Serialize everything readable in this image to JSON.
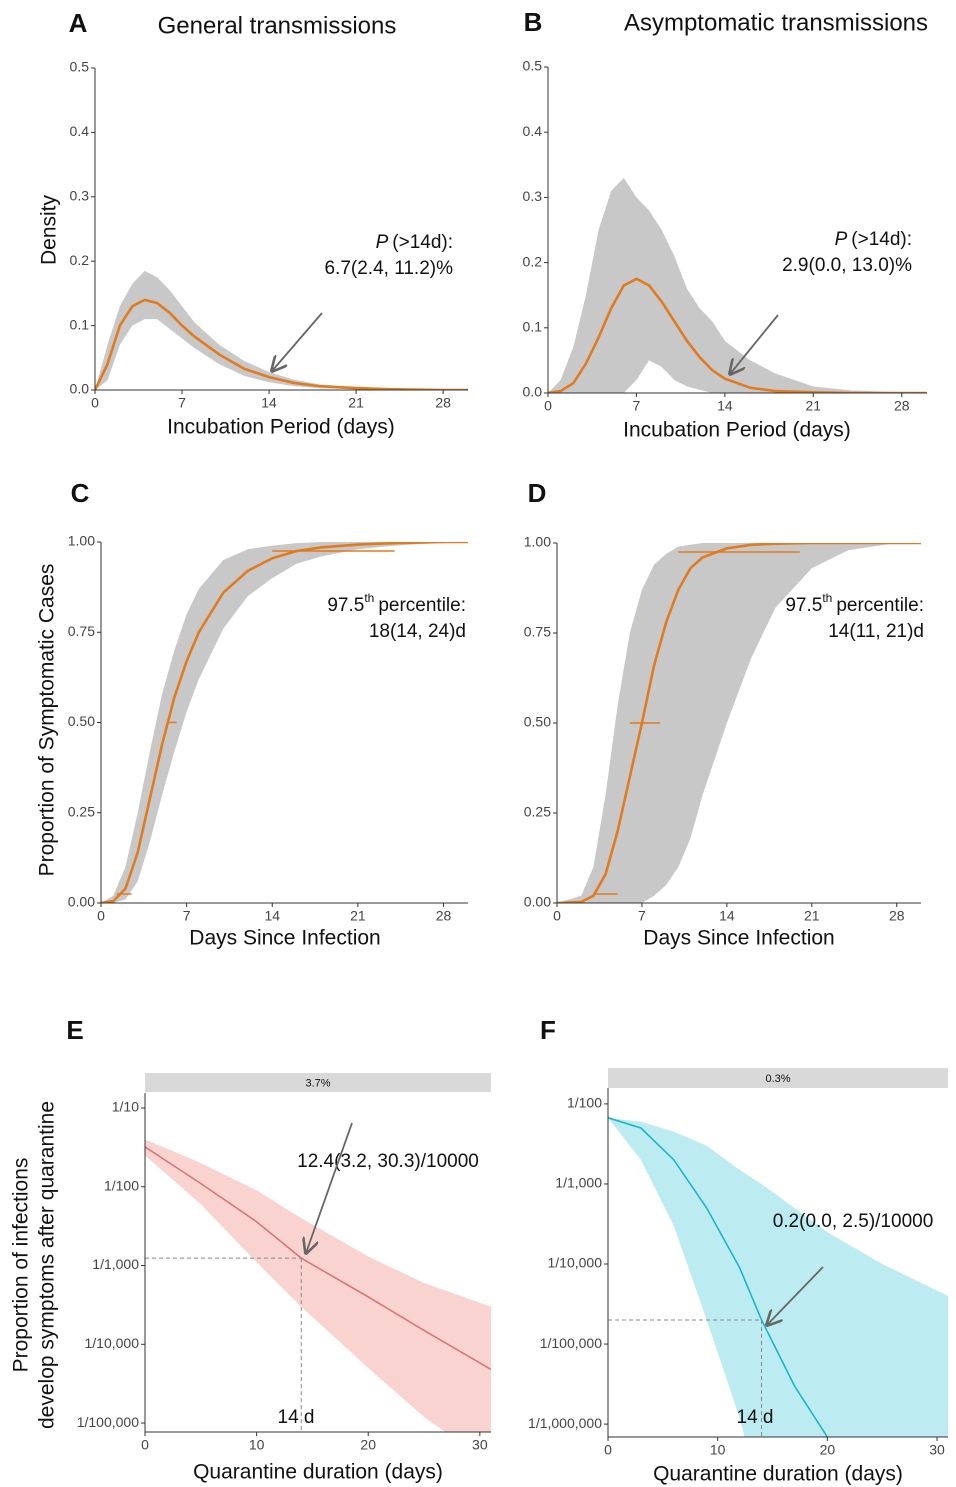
{
  "chart_data": [
    {
      "type": "line",
      "letter": "A",
      "title": "General transmissions",
      "x_label": "Incubation Period (days)",
      "y_label": "Density",
      "xlim": [
        0,
        30
      ],
      "xticks": [
        0,
        7,
        14,
        21,
        28
      ],
      "ylim": [
        0,
        0.5
      ],
      "yticks": [
        {
          "value": 0,
          "label": "0.0"
        },
        0.1,
        0.2,
        0.3,
        0.4,
        0.5
      ],
      "x": [
        0,
        1,
        2,
        3,
        4,
        5,
        6,
        7,
        8,
        10,
        12,
        14,
        16,
        18,
        21,
        24,
        28,
        30
      ],
      "band": {
        "color": "#c8c8c8",
        "upper": [
          0,
          0.07,
          0.13,
          0.165,
          0.185,
          0.175,
          0.155,
          0.13,
          0.105,
          0.07,
          0.045,
          0.028,
          0.016,
          0.009,
          0.004,
          0.002,
          0.001,
          0
        ],
        "lower": [
          0,
          0.015,
          0.07,
          0.1,
          0.11,
          0.11,
          0.095,
          0.08,
          0.065,
          0.04,
          0.022,
          0.012,
          0.006,
          0.003,
          0.001,
          0,
          0,
          0
        ]
      },
      "series": [
        {
          "color": "#e07b20",
          "values": [
            0,
            0.04,
            0.1,
            0.13,
            0.14,
            0.135,
            0.12,
            0.1,
            0.083,
            0.055,
            0.033,
            0.02,
            0.011,
            0.006,
            0.003,
            0.001,
            0,
            0
          ]
        }
      ],
      "annotation": {
        "label": "P",
        "text": "(>14d):",
        "value": "6.7(2.4, 11.2)%"
      }
    },
    {
      "type": "line",
      "letter": "B",
      "title": "Asymptomatic transmissions",
      "x_label": "Incubation Period (days)",
      "xlim": [
        0,
        30
      ],
      "xticks": [
        0,
        7,
        14,
        21,
        28
      ],
      "ylim": [
        0,
        0.5
      ],
      "yticks": [
        {
          "value": 0,
          "label": "0.0"
        },
        0.1,
        0.2,
        0.3,
        0.4,
        0.5
      ],
      "x": [
        0,
        1,
        2,
        3,
        4,
        5,
        6,
        7,
        8,
        9,
        10,
        11,
        12,
        13,
        14,
        16,
        18,
        21,
        24,
        28,
        30
      ],
      "band": {
        "color": "#c8c8c8",
        "upper": [
          0,
          0.02,
          0.07,
          0.15,
          0.25,
          0.31,
          0.33,
          0.3,
          0.28,
          0.25,
          0.21,
          0.16,
          0.13,
          0.11,
          0.08,
          0.05,
          0.03,
          0.01,
          0.004,
          0.001,
          0
        ],
        "lower": [
          0,
          0,
          0,
          0,
          0,
          0,
          0,
          0.02,
          0.05,
          0.04,
          0.02,
          0.01,
          0.005,
          0,
          0,
          0,
          0,
          0,
          0,
          0,
          0
        ]
      },
      "series": [
        {
          "color": "#e07b20",
          "values": [
            0,
            0.003,
            0.015,
            0.045,
            0.085,
            0.13,
            0.165,
            0.175,
            0.165,
            0.14,
            0.11,
            0.08,
            0.055,
            0.035,
            0.022,
            0.008,
            0.003,
            0.001,
            0,
            0,
            0
          ]
        }
      ],
      "annotation": {
        "label": "P",
        "text": "(>14d):",
        "value": "2.9(0.0, 13.0)%"
      }
    },
    {
      "type": "line",
      "letter": "C",
      "x_label": "Days Since Infection",
      "y_label": "Proportion of Symptomatic Cases",
      "xlim": [
        0,
        30
      ],
      "xticks": [
        0,
        7,
        14,
        21,
        28
      ],
      "ylim": [
        0,
        1
      ],
      "yticks": [
        {
          "value": 0,
          "label": "0.00"
        },
        0.25,
        {
          "value": 0.5,
          "label": "0.50"
        },
        0.75,
        {
          "value": 1,
          "label": "1.00"
        }
      ],
      "x": [
        0,
        1,
        2,
        3,
        4,
        5,
        6,
        7,
        8,
        10,
        12,
        14,
        16,
        18,
        21,
        24,
        28,
        30
      ],
      "band": {
        "color": "#c8c8c8",
        "upper": [
          0,
          0.02,
          0.1,
          0.25,
          0.42,
          0.58,
          0.7,
          0.8,
          0.87,
          0.95,
          0.98,
          0.99,
          0.997,
          1,
          1,
          1,
          1,
          1
        ],
        "lower": [
          0,
          0,
          0.01,
          0.06,
          0.17,
          0.3,
          0.42,
          0.53,
          0.62,
          0.76,
          0.85,
          0.9,
          0.94,
          0.96,
          0.98,
          0.99,
          0.998,
          1
        ]
      },
      "series": [
        {
          "color": "#e07b20",
          "values": [
            0,
            0.005,
            0.04,
            0.14,
            0.29,
            0.44,
            0.57,
            0.67,
            0.75,
            0.86,
            0.92,
            0.955,
            0.975,
            0.985,
            0.993,
            0.997,
            1,
            1
          ]
        }
      ],
      "intervals": [
        {
          "y": 0.025,
          "x": [
            1.3,
            2.5
          ]
        },
        {
          "y": 0.5,
          "x": [
            5.5,
            6.2
          ]
        },
        {
          "y": 0.975,
          "x": [
            14,
            24
          ]
        }
      ],
      "annotation": {
        "lead": "97.5",
        "sup": "th",
        "text": "percentile:",
        "value": "18(14, 24)d"
      }
    },
    {
      "type": "line",
      "letter": "D",
      "x_label": "Days Since Infection",
      "xlim": [
        0,
        30
      ],
      "xticks": [
        0,
        7,
        14,
        21,
        28
      ],
      "ylim": [
        0,
        1
      ],
      "yticks": [
        {
          "value": 0,
          "label": "0.00"
        },
        0.25,
        {
          "value": 0.5,
          "label": "0.50"
        },
        0.75,
        {
          "value": 1,
          "label": "1.00"
        }
      ],
      "x": [
        0,
        2,
        3,
        4,
        5,
        6,
        7,
        8,
        9,
        10,
        11,
        12,
        14,
        16,
        18,
        21,
        24,
        28,
        30
      ],
      "band": {
        "color": "#c8c8c8",
        "upper": [
          0,
          0.02,
          0.1,
          0.3,
          0.55,
          0.75,
          0.87,
          0.94,
          0.97,
          0.99,
          0.995,
          1,
          1,
          1,
          1,
          1,
          1,
          1,
          1
        ],
        "lower": [
          0,
          0,
          0,
          0,
          0,
          0,
          0,
          0.02,
          0.05,
          0.1,
          0.18,
          0.3,
          0.5,
          0.68,
          0.82,
          0.93,
          0.98,
          1,
          1
        ]
      },
      "series": [
        {
          "color": "#e07b20",
          "values": [
            0,
            0.003,
            0.02,
            0.08,
            0.2,
            0.35,
            0.5,
            0.66,
            0.78,
            0.87,
            0.93,
            0.96,
            0.985,
            0.995,
            0.998,
            1,
            1,
            1,
            1
          ]
        }
      ],
      "intervals": [
        {
          "y": 0.025,
          "x": [
            3,
            5
          ]
        },
        {
          "y": 0.5,
          "x": [
            6,
            8.5
          ]
        },
        {
          "y": 0.975,
          "x": [
            10,
            20
          ]
        }
      ],
      "annotation": {
        "lead": "97.5",
        "sup": "th",
        "text": "percentile:",
        "value": "14(11, 21)d"
      }
    },
    {
      "type": "line",
      "letter": "E",
      "strip": "3.7%",
      "x_label": "Quarantine duration (days)",
      "y_label": [
        "Proportion of infections",
        "develop symptoms after quarantine"
      ],
      "log_scale": true,
      "xlim": [
        0,
        31
      ],
      "xticks": [
        0,
        10,
        20,
        30
      ],
      "ylim": [
        7.7e-06,
        0.155
      ],
      "yticks": [
        {
          "value": 0.1,
          "label": "1/10"
        },
        {
          "value": 0.01,
          "label": "1/100"
        },
        {
          "value": 0.001,
          "label": "1/1,000"
        },
        {
          "value": 0.0001,
          "label": "1/10,000"
        },
        {
          "value": 1e-05,
          "label": "1/100,000"
        }
      ],
      "x": [
        0,
        5,
        10,
        14,
        20,
        25,
        31
      ],
      "band": {
        "color": "#f9d3d0",
        "upper": [
          0.04,
          0.02,
          0.009,
          0.004,
          0.0013,
          0.0006,
          0.0003
        ],
        "lower": [
          0.025,
          0.006,
          0.0011,
          0.0003,
          5e-05,
          1.2e-05,
          3e-06
        ]
      },
      "series": [
        {
          "color": "#d9767a",
          "values": [
            0.032,
            0.011,
            0.0036,
            0.00124,
            0.0004,
            0.00015,
            4.8e-05
          ]
        }
      ],
      "reference": {
        "x": 14,
        "y": 0.00124
      },
      "reference_label": "14 d",
      "annotation": {
        "value": "12.4(3.2, 30.3)/10000"
      }
    },
    {
      "type": "line",
      "letter": "F",
      "strip": "0.3%",
      "x_label": "Quarantine duration (days)",
      "log_scale": true,
      "xlim": [
        0,
        31
      ],
      "xticks": [
        0,
        10,
        20,
        30
      ],
      "ylim": [
        6.9e-07,
        0.0158
      ],
      "yticks": [
        {
          "value": 0.01,
          "label": "1/100"
        },
        {
          "value": 0.001,
          "label": "1/1,000"
        },
        {
          "value": 0.0001,
          "label": "1/10,000"
        },
        {
          "value": 1e-05,
          "label": "1/100,000"
        },
        {
          "value": 1e-06,
          "label": "1/1,000,000"
        }
      ],
      "x": [
        0,
        3,
        6,
        9,
        12,
        14,
        17,
        20,
        25,
        31
      ],
      "band": {
        "color": "#bdebf2",
        "upper": [
          0.0067,
          0.006,
          0.0045,
          0.003,
          0.0015,
          0.001,
          0.0005,
          0.00025,
          0.0001,
          4e-05
        ],
        "lower": [
          0.0067,
          0.002,
          0.0003,
          2e-05,
          1.2e-06,
          1e-07,
          1e-07,
          1e-07,
          1e-07,
          1e-07
        ]
      },
      "series": [
        {
          "color": "#1bb5c9",
          "values": [
            0.0067,
            0.005,
            0.002,
            0.0005,
            9e-05,
            2e-05,
            3e-06,
            6.9e-07,
            null,
            null
          ]
        }
      ],
      "reference": {
        "x": 14,
        "y": 2e-05
      },
      "reference_label": "14 d",
      "annotation": {
        "value": "0.2(0.0, 2.5)/10000"
      }
    }
  ]
}
